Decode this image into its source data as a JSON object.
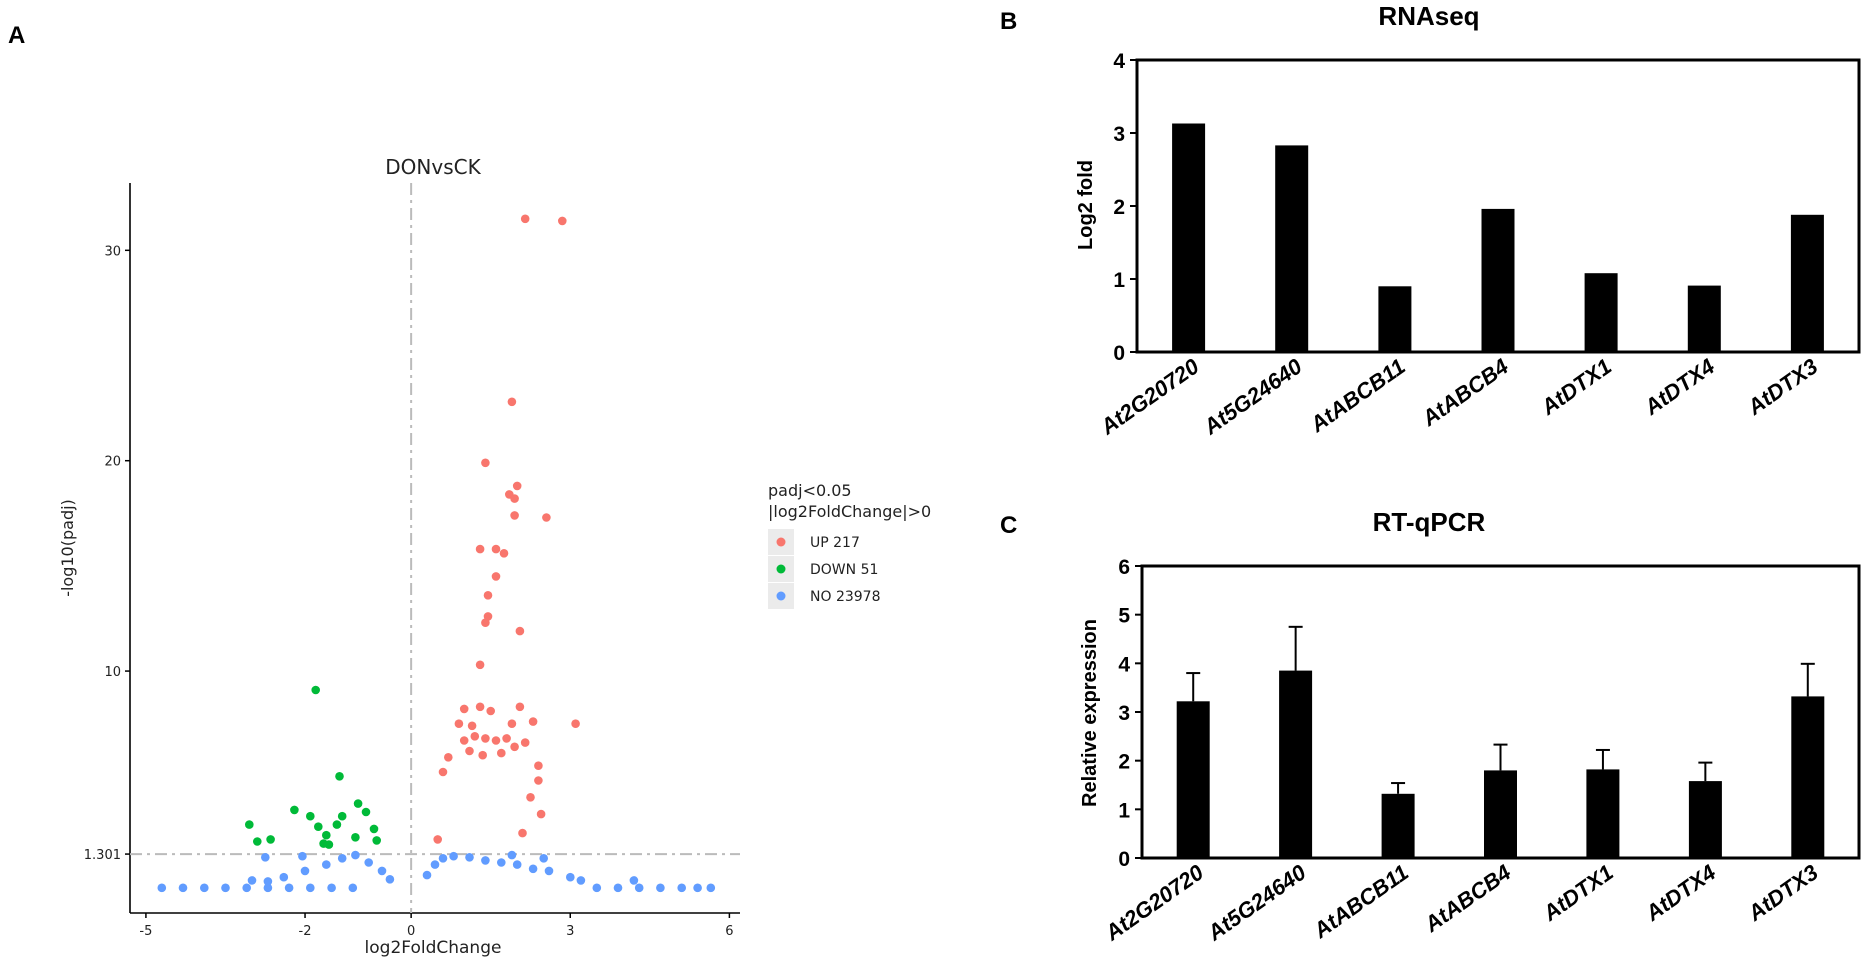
{
  "panel_labels": {
    "a": "A",
    "b": "B",
    "c": "C"
  },
  "chart_data": [
    {
      "type": "scatter",
      "panel": "A",
      "title": "DONvsCK",
      "xlabel": "log2FoldChange",
      "ylabel": "-log10(padj)",
      "xlim": [
        -5.3,
        6.2
      ],
      "ylim": [
        -1.5,
        33.2
      ],
      "xticks": [
        -5,
        -2,
        0,
        3,
        6
      ],
      "yticks": [
        1.301,
        10,
        20,
        30
      ],
      "ytick_labels": [
        "1.301",
        "10",
        "20",
        "30"
      ],
      "hline": 1.301,
      "vline": 0,
      "legend": {
        "title_line1": "padj<0.05",
        "title_line2": "|log2FoldChange|>0",
        "position": "right",
        "entries": [
          {
            "label": "UP 217",
            "color": "#F8766D"
          },
          {
            "label": "DOWN 51",
            "color": "#00BA38"
          },
          {
            "label": "NO 23978",
            "color": "#619CFF"
          }
        ]
      },
      "series": [
        {
          "name": "UP",
          "color": "#F8766D",
          "points": [
            [
              2.15,
              31.5
            ],
            [
              2.85,
              31.4
            ],
            [
              1.9,
              22.8
            ],
            [
              1.4,
              19.9
            ],
            [
              2.0,
              18.8
            ],
            [
              1.85,
              18.4
            ],
            [
              1.95,
              18.2
            ],
            [
              2.55,
              17.3
            ],
            [
              1.95,
              17.4
            ],
            [
              1.3,
              15.8
            ],
            [
              1.6,
              15.8
            ],
            [
              1.75,
              15.6
            ],
            [
              1.6,
              14.5
            ],
            [
              1.45,
              13.6
            ],
            [
              1.45,
              12.6
            ],
            [
              1.4,
              12.3
            ],
            [
              2.05,
              11.9
            ],
            [
              1.3,
              10.3
            ],
            [
              3.1,
              7.5
            ],
            [
              1.0,
              8.2
            ],
            [
              1.3,
              8.3
            ],
            [
              1.5,
              8.1
            ],
            [
              2.05,
              8.3
            ],
            [
              0.9,
              7.5
            ],
            [
              1.15,
              7.4
            ],
            [
              1.9,
              7.5
            ],
            [
              2.3,
              7.6
            ],
            [
              1.0,
              6.7
            ],
            [
              1.2,
              6.9
            ],
            [
              1.4,
              6.8
            ],
            [
              1.6,
              6.7
            ],
            [
              1.8,
              6.8
            ],
            [
              1.1,
              6.2
            ],
            [
              1.35,
              6.0
            ],
            [
              1.7,
              6.1
            ],
            [
              1.95,
              6.4
            ],
            [
              2.15,
              6.6
            ],
            [
              2.4,
              5.5
            ],
            [
              0.7,
              5.9
            ],
            [
              0.6,
              5.2
            ],
            [
              2.4,
              4.8
            ],
            [
              2.25,
              4.0
            ],
            [
              2.45,
              3.2
            ],
            [
              2.1,
              2.3
            ],
            [
              0.5,
              2.0
            ]
          ]
        },
        {
          "name": "DOWN",
          "color": "#00BA38",
          "points": [
            [
              -1.8,
              9.1
            ],
            [
              -1.35,
              5.0
            ],
            [
              -3.05,
              2.7
            ],
            [
              -2.65,
              2.0
            ],
            [
              -2.2,
              3.4
            ],
            [
              -1.3,
              3.1
            ],
            [
              -1.0,
              3.7
            ],
            [
              -0.85,
              3.3
            ],
            [
              -1.9,
              3.1
            ],
            [
              -1.75,
              2.6
            ],
            [
              -1.6,
              2.2
            ],
            [
              -1.4,
              2.7
            ],
            [
              -1.05,
              2.1
            ],
            [
              -0.7,
              2.5
            ],
            [
              -2.9,
              1.9
            ],
            [
              -1.65,
              1.8
            ],
            [
              -1.55,
              1.75
            ],
            [
              -0.65,
              1.95
            ]
          ]
        },
        {
          "name": "NO",
          "color": "#619CFF",
          "points": [
            [
              -4.7,
              -0.3
            ],
            [
              -4.3,
              -0.3
            ],
            [
              -3.9,
              -0.3
            ],
            [
              -3.5,
              -0.3
            ],
            [
              -3.1,
              -0.3
            ],
            [
              -2.7,
              -0.3
            ],
            [
              -2.3,
              -0.3
            ],
            [
              -1.9,
              -0.3
            ],
            [
              -1.5,
              -0.3
            ],
            [
              -1.1,
              -0.3
            ],
            [
              3.5,
              -0.3
            ],
            [
              3.9,
              -0.3
            ],
            [
              4.3,
              -0.3
            ],
            [
              4.7,
              -0.3
            ],
            [
              5.1,
              -0.3
            ],
            [
              5.4,
              -0.3
            ],
            [
              5.65,
              -0.3
            ],
            [
              -2.4,
              0.2
            ],
            [
              -2.0,
              0.5
            ],
            [
              -1.6,
              0.8
            ],
            [
              -1.3,
              1.1
            ],
            [
              -1.05,
              1.25
            ],
            [
              -0.8,
              0.9
            ],
            [
              -0.55,
              0.5
            ],
            [
              -0.4,
              0.1
            ],
            [
              0.3,
              0.3
            ],
            [
              0.45,
              0.8
            ],
            [
              0.6,
              1.1
            ],
            [
              0.8,
              1.2
            ],
            [
              1.1,
              1.15
            ],
            [
              1.4,
              1.0
            ],
            [
              1.7,
              0.9
            ],
            [
              2.0,
              0.8
            ],
            [
              2.3,
              0.6
            ],
            [
              2.6,
              0.5
            ],
            [
              3.0,
              0.2
            ],
            [
              3.2,
              0.05
            ],
            [
              -3.0,
              0.05
            ],
            [
              4.2,
              0.05
            ],
            [
              -2.7,
              0.0
            ],
            [
              2.5,
              1.1
            ],
            [
              1.9,
              1.25
            ],
            [
              -2.05,
              1.2
            ],
            [
              -2.75,
              1.15
            ]
          ]
        }
      ]
    },
    {
      "type": "bar",
      "panel": "B",
      "title": "RNAseq",
      "xlabel": "",
      "ylabel": "Log2 fold",
      "ylim": [
        0,
        4
      ],
      "yticks": [
        0,
        1,
        2,
        3,
        4
      ],
      "categories": [
        "At2G20720",
        "At5G24640",
        "AtABCB11",
        "AtABCB4",
        "AtDTX1",
        "AtDTX4",
        "AtDTX3"
      ],
      "values": [
        3.13,
        2.83,
        0.9,
        1.96,
        1.08,
        0.91,
        1.88
      ]
    },
    {
      "type": "bar",
      "panel": "C",
      "title": "RT-qPCR",
      "xlabel": "",
      "ylabel": "Relative expression",
      "ylim": [
        0,
        6
      ],
      "yticks": [
        0,
        1,
        2,
        3,
        4,
        5,
        6
      ],
      "categories": [
        "At2G20720",
        "At5G24640",
        "AtABCB11",
        "AtABCB4",
        "AtDTX1",
        "AtDTX4",
        "AtDTX3"
      ],
      "values": [
        3.22,
        3.85,
        1.32,
        1.8,
        1.82,
        1.58,
        3.32
      ],
      "errors": [
        0.58,
        0.9,
        0.22,
        0.53,
        0.4,
        0.38,
        0.67
      ]
    }
  ]
}
